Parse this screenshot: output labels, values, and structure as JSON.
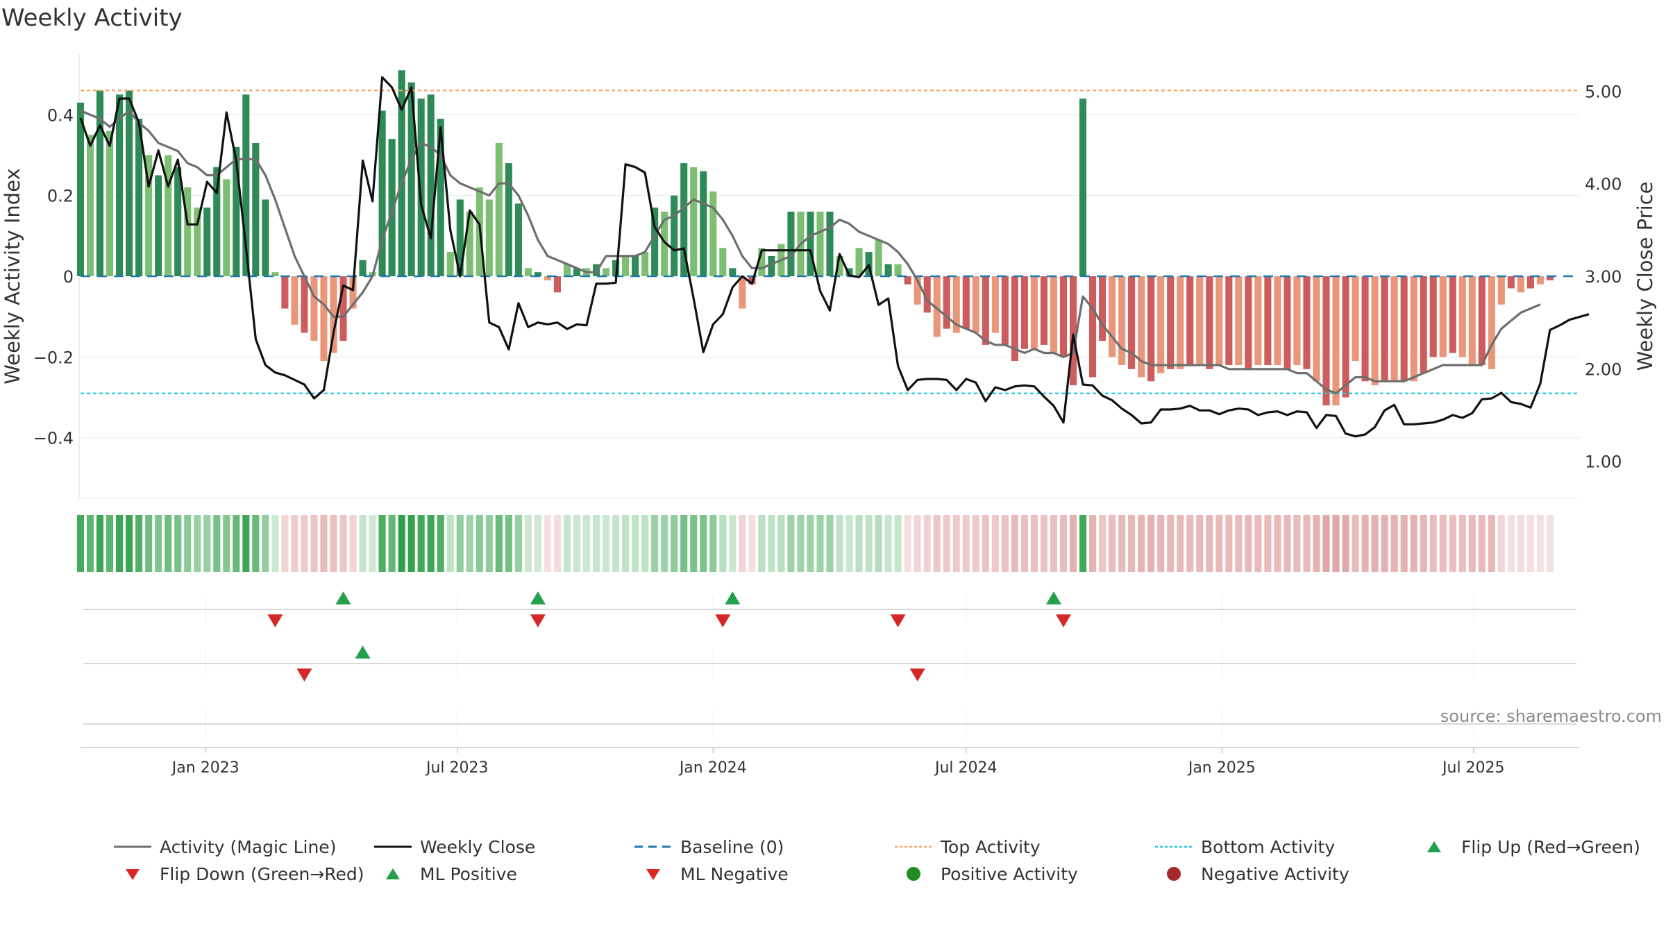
{
  "title": "Weekly Activity",
  "source": "source: sharemaestro.com",
  "colors": {
    "pos_dark": "#2e8b57",
    "pos_light": "#7dbf72",
    "neg_dark": "#cd5c5c",
    "neg_light": "#e9967a",
    "magic_line": "#6e6e6e",
    "close_line": "#111111",
    "baseline": "#1f77b4",
    "top_line": "#f4a460",
    "bottom_line": "#1ec8e0",
    "marker_up": "#22a04b",
    "marker_down": "#d62728",
    "dot_pos": "#228b22",
    "dot_neg": "#a52a2a"
  },
  "chart_data": {
    "type": "bar",
    "x_start": "2022-10-03",
    "x_end": "2025-09-15",
    "x_step": "weekly",
    "xticks": [
      "Jan 2023",
      "Jul 2023",
      "Jan 2024",
      "Jul 2024",
      "Jan 2025",
      "Jul 2025"
    ],
    "xtick_dates": [
      "2023-01-01",
      "2023-07-01",
      "2024-01-01",
      "2024-07-01",
      "2025-01-01",
      "2025-07-01"
    ],
    "ylabel_left": "Weekly Activity Index",
    "ylabel_right": "Weekly Close Price",
    "yticks_left": [
      0.4,
      0.2,
      0,
      -0.2,
      -0.4
    ],
    "ytick_labels_left": [
      "0.4",
      "0.2",
      "0",
      "−0.2",
      "−0.4"
    ],
    "ylim_left": [
      -0.55,
      0.55
    ],
    "yticks_right": [
      5,
      4,
      3,
      2,
      1
    ],
    "ytick_labels_right": [
      "5.00",
      "4.00",
      "3.00",
      "2.00",
      "1.00"
    ],
    "ylim_right": [
      0.6,
      5.4
    ],
    "top_activity": 0.46,
    "bottom_activity": -0.29,
    "activity": [
      0.43,
      0.35,
      0.46,
      0.36,
      0.45,
      0.46,
      0.39,
      0.3,
      0.25,
      0.3,
      0.27,
      0.22,
      0.17,
      0.17,
      0.27,
      0.24,
      0.32,
      0.45,
      0.33,
      0.19,
      0.01,
      -0.08,
      -0.12,
      -0.14,
      -0.16,
      -0.21,
      -0.19,
      -0.16,
      -0.08,
      0.04,
      0.01,
      0.41,
      0.34,
      0.51,
      0.48,
      0.44,
      0.45,
      0.39,
      0.06,
      0.19,
      0.16,
      0.22,
      0.19,
      0.33,
      0.28,
      0.18,
      0.02,
      0.01,
      -0.01,
      -0.04,
      0.03,
      0.02,
      0.02,
      0.03,
      0.02,
      0.04,
      0.05,
      0.05,
      0.06,
      0.17,
      0.16,
      0.2,
      0.28,
      0.27,
      0.26,
      0.21,
      0.07,
      0.02,
      -0.08,
      -0.02,
      0.07,
      0.05,
      0.08,
      0.16,
      0.16,
      0.16,
      0.16,
      0.16,
      0.05,
      0.02,
      0.07,
      0.06,
      0.09,
      0.03,
      0.03,
      -0.02,
      -0.07,
      -0.09,
      -0.15,
      -0.13,
      -0.14,
      -0.13,
      -0.14,
      -0.17,
      -0.14,
      -0.17,
      -0.21,
      -0.18,
      -0.18,
      -0.17,
      -0.19,
      -0.2,
      -0.27,
      0.44,
      -0.25,
      -0.16,
      -0.2,
      -0.22,
      -0.23,
      -0.25,
      -0.26,
      -0.24,
      -0.23,
      -0.23,
      -0.22,
      -0.22,
      -0.23,
      -0.22,
      -0.22,
      -0.22,
      -0.23,
      -0.22,
      -0.22,
      -0.22,
      -0.23,
      -0.22,
      -0.23,
      -0.26,
      -0.32,
      -0.32,
      -0.3,
      -0.21,
      -0.26,
      -0.27,
      -0.26,
      -0.26,
      -0.26,
      -0.26,
      -0.24,
      -0.2,
      -0.2,
      -0.19,
      -0.2,
      -0.22,
      -0.22,
      -0.23,
      -0.07,
      -0.03,
      -0.04,
      -0.03,
      -0.02,
      -0.01
    ],
    "magic_line": [
      0.41,
      0.4,
      0.39,
      0.37,
      0.39,
      0.41,
      0.38,
      0.36,
      0.33,
      0.32,
      0.31,
      0.28,
      0.27,
      0.25,
      0.25,
      0.27,
      0.29,
      0.29,
      0.29,
      0.25,
      0.19,
      0.12,
      0.05,
      0.0,
      -0.05,
      -0.07,
      -0.1,
      -0.1,
      -0.07,
      -0.04,
      0.0,
      0.09,
      0.16,
      0.23,
      0.29,
      0.33,
      0.32,
      0.3,
      0.25,
      0.23,
      0.22,
      0.21,
      0.2,
      0.23,
      0.23,
      0.2,
      0.15,
      0.09,
      0.05,
      0.04,
      0.03,
      0.02,
      0.01,
      0.01,
      0.05,
      0.05,
      0.05,
      0.05,
      0.06,
      0.1,
      0.14,
      0.15,
      0.17,
      0.19,
      0.18,
      0.17,
      0.14,
      0.1,
      0.05,
      0.02,
      0.02,
      0.03,
      0.04,
      0.05,
      0.08,
      0.1,
      0.11,
      0.12,
      0.14,
      0.13,
      0.11,
      0.1,
      0.09,
      0.08,
      0.06,
      0.03,
      -0.01,
      -0.06,
      -0.08,
      -0.1,
      -0.12,
      -0.13,
      -0.14,
      -0.16,
      -0.17,
      -0.17,
      -0.18,
      -0.19,
      -0.18,
      -0.19,
      -0.19,
      -0.2,
      -0.19,
      -0.05,
      -0.08,
      -0.12,
      -0.15,
      -0.18,
      -0.19,
      -0.21,
      -0.22,
      -0.22,
      -0.22,
      -0.22,
      -0.22,
      -0.22,
      -0.22,
      -0.22,
      -0.23,
      -0.23,
      -0.23,
      -0.23,
      -0.23,
      -0.23,
      -0.23,
      -0.24,
      -0.24,
      -0.26,
      -0.28,
      -0.29,
      -0.27,
      -0.25,
      -0.25,
      -0.26,
      -0.26,
      -0.26,
      -0.26,
      -0.25,
      -0.24,
      -0.23,
      -0.22,
      -0.22,
      -0.22,
      -0.22,
      -0.22,
      -0.17,
      -0.13,
      -0.11,
      -0.09,
      -0.08,
      -0.07
    ],
    "weekly_close": [
      4.71,
      4.41,
      4.63,
      4.41,
      4.92,
      4.92,
      4.66,
      3.97,
      4.36,
      3.97,
      4.26,
      3.56,
      3.56,
      4.02,
      3.9,
      4.77,
      4.25,
      3.32,
      2.32,
      2.04,
      1.96,
      1.93,
      1.88,
      1.83,
      1.68,
      1.77,
      2.39,
      2.9,
      2.85,
      4.25,
      3.81,
      5.15,
      5.04,
      4.8,
      5.04,
      3.77,
      3.41,
      4.61,
      3.5,
      3.0,
      3.71,
      3.56,
      2.5,
      2.45,
      2.21,
      2.71,
      2.45,
      2.5,
      2.48,
      2.5,
      2.43,
      2.48,
      2.47,
      2.92,
      2.92,
      2.93,
      4.21,
      4.18,
      4.12,
      3.53,
      3.37,
      3.28,
      3.3,
      2.76,
      2.18,
      2.48,
      2.59,
      2.88,
      3.0,
      2.92,
      3.28,
      3.28,
      3.28,
      3.28,
      3.28,
      3.28,
      2.84,
      2.63,
      3.24,
      3.01,
      2.99,
      3.12,
      2.69,
      2.76,
      2.03,
      1.77,
      1.88,
      1.89,
      1.89,
      1.88,
      1.77,
      1.89,
      1.85,
      1.65,
      1.8,
      1.77,
      1.81,
      1.82,
      1.81,
      1.7,
      1.6,
      1.42,
      2.37,
      1.83,
      1.82,
      1.71,
      1.66,
      1.57,
      1.5,
      1.41,
      1.42,
      1.56,
      1.56,
      1.57,
      1.6,
      1.55,
      1.55,
      1.51,
      1.55,
      1.57,
      1.56,
      1.5,
      1.53,
      1.54,
      1.5,
      1.54,
      1.53,
      1.36,
      1.5,
      1.49,
      1.3,
      1.27,
      1.29,
      1.37,
      1.55,
      1.61,
      1.4,
      1.4,
      1.41,
      1.42,
      1.45,
      1.5,
      1.47,
      1.52,
      1.67,
      1.68,
      1.74,
      1.64,
      1.62,
      1.58,
      1.84,
      2.42,
      2.47,
      2.53,
      2.56,
      2.59
    ],
    "flip_up_weeks": [
      27,
      47,
      67,
      100
    ],
    "flip_down_weeks": [
      20,
      47,
      66,
      84,
      101
    ],
    "ml_positive_weeks": [
      29
    ],
    "ml_negative_weeks": [
      23,
      86
    ],
    "legend": [
      {
        "label": "Activity (Magic Line)",
        "kind": "line",
        "color": "#6e6e6e"
      },
      {
        "label": "Weekly Close",
        "kind": "line",
        "color": "#111111"
      },
      {
        "label": "Baseline (0)",
        "kind": "dashed",
        "color": "#1f77b4"
      },
      {
        "label": "Top Activity",
        "kind": "dotted",
        "color": "#f4a460"
      },
      {
        "label": "Bottom Activity",
        "kind": "dotted",
        "color": "#1ec8e0"
      },
      {
        "label": "Flip Up (Red→Green)",
        "kind": "tri-up",
        "color": "#22a04b"
      },
      {
        "label": "Flip Down (Green→Red)",
        "kind": "tri-down",
        "color": "#d62728"
      },
      {
        "label": "ML Positive",
        "kind": "tri-up",
        "color": "#22a04b"
      },
      {
        "label": "ML Negative",
        "kind": "tri-down",
        "color": "#d62728"
      },
      {
        "label": "Positive Activity",
        "kind": "dot",
        "color": "#228b22"
      },
      {
        "label": "Negative Activity",
        "kind": "dot",
        "color": "#a52a2a"
      }
    ]
  }
}
